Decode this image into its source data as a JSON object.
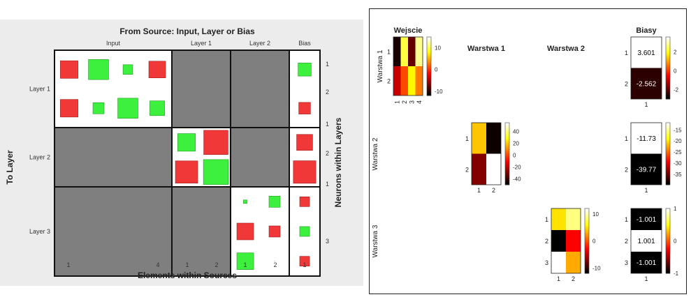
{
  "chart_data": [
    {
      "type": "heatmap",
      "chart_title": "From Source: Input, Layer or Bias",
      "xlabel": "Elements within Sources",
      "ylabel": "To Layer",
      "ylabel_right": "Neurons within Layers",
      "source_groups": [
        {
          "name": "Input",
          "tick_labels": [
            "1",
            "4"
          ]
        },
        {
          "name": "Layer 1",
          "tick_labels": [
            "1",
            "2"
          ]
        },
        {
          "name": "Layer 2",
          "tick_labels": [
            "1",
            "2"
          ]
        },
        {
          "name": "Bias",
          "tick_labels": [
            "1"
          ]
        }
      ],
      "target_layers": [
        {
          "name": "Layer 1",
          "neuron_labels": [
            "1",
            "2"
          ]
        },
        {
          "name": "Layer 2",
          "neuron_labels": [
            "1",
            "2"
          ]
        },
        {
          "name": "Layer 3",
          "neuron_labels": [
            "1",
            "3"
          ]
        }
      ],
      "colors": {
        "positive": "#3ef03e",
        "negative": "#f03838",
        "inactive": "#7f7f7f"
      },
      "weight_blocks": [
        {
          "from": "Input",
          "to": "Layer 1",
          "rows": 2,
          "cols": 4,
          "values": [
            [
              -0.5,
              0.65,
              0.15,
              -0.45
            ],
            [
              -0.5,
              0.2,
              0.65,
              0.35
            ]
          ]
        },
        {
          "from": "Bias",
          "to": "Layer 1",
          "rows": 2,
          "cols": 1,
          "values": [
            [
              0.25
            ],
            [
              -0.2
            ]
          ]
        },
        {
          "from": "Layer 1",
          "to": "Layer 2",
          "rows": 2,
          "cols": 2,
          "values": [
            [
              0.5,
              -0.95
            ],
            [
              -0.8,
              1.0
            ]
          ]
        },
        {
          "from": "Bias",
          "to": "Layer 2",
          "rows": 2,
          "cols": 1,
          "values": [
            [
              -0.4
            ],
            [
              -0.8
            ]
          ]
        },
        {
          "from": "Layer 2",
          "to": "Layer 3",
          "rows": 3,
          "cols": 2,
          "values": [
            [
              0.02,
              0.2
            ],
            [
              -0.45,
              -0.2
            ],
            [
              0.45,
              0.0
            ]
          ]
        },
        {
          "from": "Bias",
          "to": "Layer 3",
          "rows": 3,
          "cols": 1,
          "values": [
            [
              -0.15
            ],
            [
              0.15
            ],
            [
              -0.15
            ]
          ]
        }
      ]
    },
    {
      "type": "heatmap",
      "colormap": "hot",
      "row_labels": [
        "Warstwa 1",
        "Warstwa 2",
        "Warstwa 3"
      ],
      "col_labels": [
        "Wejscie",
        "Warstwa 1",
        "Warstwa 2",
        "Biasy"
      ],
      "cells": [
        {
          "row": "Warstwa 1",
          "col": "Wejscie",
          "rows": 2,
          "cols": 4,
          "x_ticks": [
            "1",
            "2",
            "3",
            "4"
          ],
          "y_ticks": [
            "1",
            "2"
          ],
          "values": [
            [
              -11,
              10,
              -8,
              12
            ],
            [
              -4,
              1,
              8,
              3
            ]
          ],
          "clim": [
            -12,
            15
          ],
          "cbar_ticks": [
            "10",
            "0",
            "-10"
          ],
          "cbar_tick_values": [
            10,
            0,
            -10
          ]
        },
        {
          "row": "Warstwa 2",
          "col": "Warstwa 1",
          "rows": 2,
          "cols": 2,
          "x_ticks": [
            "1",
            "2"
          ],
          "y_ticks": [
            "1",
            "2"
          ],
          "values": [
            [
              20,
              -48
            ],
            [
              -30,
              55
            ]
          ],
          "clim": [
            -50,
            55
          ],
          "cbar_ticks": [
            "40",
            "20",
            "0",
            "-20",
            "-40"
          ],
          "cbar_tick_values": [
            40,
            20,
            0,
            -20,
            -40
          ]
        },
        {
          "row": "Warstwa 3",
          "col": "Warstwa 2",
          "rows": 3,
          "cols": 2,
          "x_ticks": [
            "1",
            "2"
          ],
          "y_ticks": [
            "1",
            "2",
            "3"
          ],
          "values": [
            [
              5,
              9
            ],
            [
              -12,
              -3
            ],
            [
              12,
              3
            ]
          ],
          "clim": [
            -12,
            12
          ],
          "cbar_ticks": [
            "10",
            "0",
            "-10"
          ],
          "cbar_tick_values": [
            10,
            0,
            -10
          ]
        },
        {
          "row": "Warstwa 1",
          "col": "Biasy",
          "rows": 2,
          "cols": 1,
          "x_ticks": [
            "1"
          ],
          "y_ticks": [
            "1",
            "2"
          ],
          "values": [
            [
              3.601
            ],
            [
              -2.562
            ]
          ],
          "labels": [
            [
              "3.601"
            ],
            [
              "-2.562"
            ]
          ],
          "clim": [
            -3,
            3.6
          ],
          "cbar_ticks": [
            "2",
            "0",
            "-2"
          ],
          "cbar_tick_values": [
            2,
            0,
            -2
          ]
        },
        {
          "row": "Warstwa 2",
          "col": "Biasy",
          "rows": 2,
          "cols": 1,
          "x_ticks": [
            "1"
          ],
          "y_ticks": [
            "1",
            "2"
          ],
          "values": [
            [
              -11.73
            ],
            [
              -39.77
            ]
          ],
          "labels": [
            [
              "-11.73"
            ],
            [
              "-39.77"
            ]
          ],
          "clim": [
            -39.77,
            -11.73
          ],
          "cbar_ticks": [
            "-15",
            "-20",
            "-25",
            "-30",
            "-35"
          ],
          "cbar_tick_values": [
            -15,
            -20,
            -25,
            -30,
            -35
          ]
        },
        {
          "row": "Warstwa 3",
          "col": "Biasy",
          "rows": 3,
          "cols": 1,
          "x_ticks": [
            "1"
          ],
          "y_ticks": [
            "1",
            "2",
            "3"
          ],
          "values": [
            [
              -1.001
            ],
            [
              1.001
            ],
            [
              -1.001
            ]
          ],
          "labels": [
            [
              "-1.001"
            ],
            [
              "1.001"
            ],
            [
              "-1.001"
            ]
          ],
          "clim": [
            -1.001,
            1.001
          ],
          "cbar_ticks": [
            "1",
            "0",
            "-1"
          ],
          "cbar_tick_values": [
            1,
            0,
            -1
          ]
        }
      ]
    }
  ]
}
